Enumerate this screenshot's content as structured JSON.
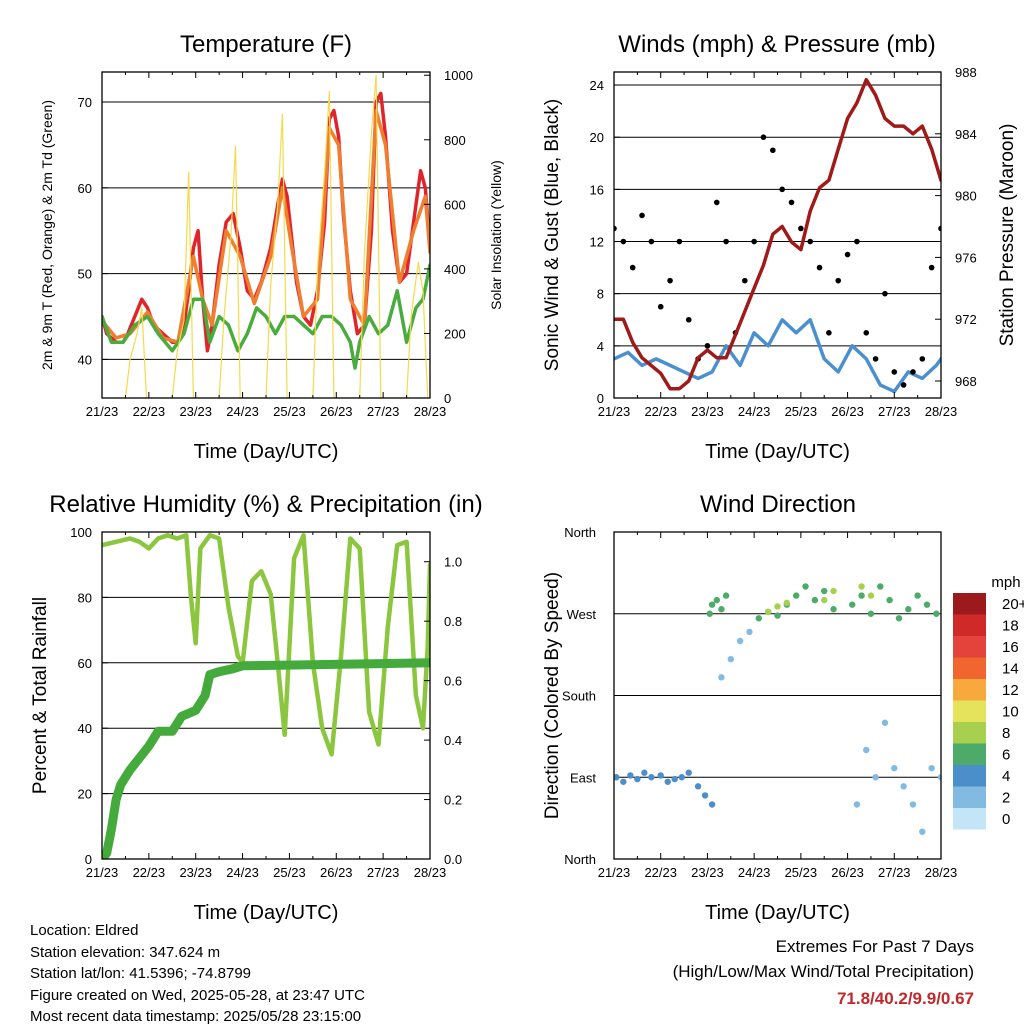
{
  "chart_data": [
    {
      "type": "line",
      "title": "Temperature (F)",
      "xlabel": "Time (Day/UTC)",
      "ylabel": "2m & 9m T (Red, Orange) & 2m Td (Green)",
      "y2label": "Solar Insolation (Yellow)",
      "xticks": [
        "21/23",
        "22/23",
        "23/23",
        "24/23",
        "25/23",
        "26/23",
        "27/23",
        "28/23"
      ],
      "yticks": [
        40,
        50,
        60,
        70
      ],
      "y2ticks": [
        0,
        200,
        400,
        600,
        800,
        1000
      ],
      "ylim": [
        35.5,
        73.5
      ],
      "y2lim": [
        0,
        1010
      ],
      "grid": "horizontal",
      "colors": {
        "t2m": "#e0242b",
        "t9m": "#f07e30",
        "td2m": "#4aab3e",
        "solar": "#f5da4b"
      },
      "series": [
        {
          "name": "2m T",
          "color": "#e0242b",
          "x": [
            0,
            0.1,
            0.3,
            0.45,
            0.55,
            0.7,
            0.85,
            0.97,
            1.1,
            1.3,
            1.5,
            1.62,
            1.75,
            1.85,
            1.95,
            2.05,
            2.15,
            2.25,
            2.35,
            2.5,
            2.65,
            2.8,
            2.95,
            3.1,
            3.25,
            3.4,
            3.6,
            3.75,
            3.85,
            3.95,
            4.05,
            4.15,
            4.3,
            4.45,
            4.6,
            4.75,
            4.85,
            4.95,
            5.05,
            5.15,
            5.3,
            5.45,
            5.6,
            5.75,
            5.85,
            5.95,
            6.05,
            6.2,
            6.35,
            6.5,
            6.65,
            6.8,
            6.9,
            7.0
          ],
          "values": [
            45,
            43,
            42,
            42,
            43,
            45,
            47,
            46,
            44,
            43,
            42,
            42,
            44,
            48,
            53,
            55,
            47,
            41,
            44,
            51,
            56,
            57,
            53,
            48,
            47,
            49,
            53,
            58,
            61,
            59,
            54,
            49,
            45,
            44,
            48,
            56,
            68,
            69,
            66,
            57,
            48,
            43,
            44,
            55,
            70,
            71,
            66,
            55,
            49,
            50,
            56,
            62,
            60,
            53
          ]
        },
        {
          "name": "9m T",
          "color": "#f07e30",
          "x": [
            0,
            0.3,
            0.6,
            0.97,
            1.3,
            1.62,
            1.95,
            2.15,
            2.35,
            2.65,
            2.95,
            3.25,
            3.6,
            3.85,
            4.05,
            4.3,
            4.6,
            4.85,
            5.05,
            5.3,
            5.6,
            5.85,
            6.05,
            6.35,
            6.65,
            6.9,
            7.0
          ],
          "values": [
            44.5,
            42.5,
            43,
            45.5,
            42.5,
            42,
            52,
            47,
            44,
            55,
            52,
            46.5,
            52,
            60,
            53,
            45,
            47,
            67,
            65,
            47,
            44,
            69,
            65,
            49,
            55,
            59,
            52.5
          ]
        },
        {
          "name": "2m Td",
          "color": "#4aab3e",
          "x": [
            0,
            0.2,
            0.45,
            0.7,
            0.97,
            1.2,
            1.5,
            1.75,
            1.95,
            2.15,
            2.3,
            2.5,
            2.7,
            2.9,
            3.1,
            3.3,
            3.5,
            3.7,
            3.9,
            4.1,
            4.3,
            4.5,
            4.7,
            4.9,
            5.1,
            5.3,
            5.4,
            5.5,
            5.7,
            5.9,
            6.1,
            6.3,
            6.5,
            6.7,
            6.85,
            7.0
          ],
          "values": [
            45,
            42,
            42,
            44,
            45,
            43,
            41,
            43,
            47,
            47,
            42,
            45,
            44,
            41,
            43,
            46,
            45,
            43,
            45,
            45,
            44,
            43,
            45,
            45,
            44,
            42,
            39,
            42,
            45,
            43,
            44,
            48,
            42,
            46,
            47,
            51
          ]
        },
        {
          "name": "Solar",
          "color": "#f5da4b",
          "axis": "y2",
          "x": [
            0.5,
            0.6,
            0.75,
            0.85,
            0.95,
            1.5,
            1.6,
            1.75,
            1.85,
            1.95,
            2.5,
            2.6,
            2.75,
            2.85,
            2.95,
            3.5,
            3.6,
            3.75,
            3.85,
            3.95,
            4.5,
            4.6,
            4.75,
            4.85,
            4.95,
            5.5,
            5.6,
            5.75,
            5.85,
            5.95,
            6.5,
            6.6,
            6.75,
            6.85,
            6.95
          ],
          "values": [
            0,
            120,
            200,
            280,
            0,
            0,
            140,
            240,
            700,
            0,
            0,
            240,
            500,
            780,
            0,
            0,
            350,
            600,
            880,
            0,
            0,
            400,
            700,
            950,
            0,
            0,
            450,
            820,
            1000,
            0,
            0,
            260,
            420,
            330,
            0
          ]
        }
      ]
    },
    {
      "type": "line",
      "title": "Winds (mph) & Pressure (mb)",
      "xlabel": "Time (Day/UTC)",
      "ylabel": "Sonic Wind & Gust (Blue, Black)",
      "y2label": "Station Pressure (Maroon)",
      "xticks": [
        "21/23",
        "22/23",
        "23/23",
        "24/23",
        "25/23",
        "26/23",
        "27/23",
        "28/23"
      ],
      "yticks": [
        0,
        4,
        8,
        12,
        16,
        20,
        24
      ],
      "y2ticks": [
        968,
        972,
        976,
        980,
        984,
        988
      ],
      "ylim": [
        0,
        25
      ],
      "y2lim": [
        966.9,
        988
      ],
      "grid": "horizontal",
      "colors": {
        "wind": "#4a90d0",
        "gust": "#000000",
        "pressure": "#a01a1a"
      },
      "series": [
        {
          "name": "Wind",
          "color": "#4a90d0",
          "x": [
            0,
            0.3,
            0.6,
            0.9,
            1.2,
            1.5,
            1.8,
            2.1,
            2.4,
            2.7,
            3.0,
            3.3,
            3.6,
            3.9,
            4.2,
            4.5,
            4.8,
            5.1,
            5.4,
            5.7,
            6.0,
            6.3,
            6.6,
            6.9,
            7.0
          ],
          "values": [
            3,
            3.5,
            2.5,
            3,
            2.5,
            2,
            1.5,
            2,
            4,
            2.5,
            5,
            4,
            6,
            5,
            6,
            3,
            2,
            4,
            3,
            1,
            0.5,
            2,
            1.5,
            2.5,
            3
          ]
        },
        {
          "name": "Gust",
          "color": "#000000",
          "x": [
            0,
            0.2,
            0.4,
            0.6,
            0.8,
            1.0,
            1.2,
            1.4,
            1.6,
            1.8,
            2.0,
            2.2,
            2.4,
            2.6,
            2.8,
            3.0,
            3.2,
            3.4,
            3.6,
            3.8,
            4.0,
            4.2,
            4.4,
            4.6,
            4.8,
            5.0,
            5.2,
            5.4,
            5.6,
            5.8,
            6.0,
            6.2,
            6.4,
            6.6,
            6.8,
            7.0
          ],
          "values": [
            13,
            12,
            10,
            14,
            12,
            7,
            9,
            12,
            6,
            3,
            4,
            15,
            12,
            5,
            9,
            12,
            20,
            19,
            16,
            15,
            13,
            12,
            10,
            5,
            9,
            11,
            12,
            5,
            3,
            8,
            2,
            1,
            2,
            3,
            10,
            13
          ]
        },
        {
          "name": "Pressure",
          "color": "#a01a1a",
          "axis": "y2",
          "x": [
            0,
            0.2,
            0.4,
            0.6,
            0.8,
            1.0,
            1.2,
            1.4,
            1.6,
            1.8,
            2.0,
            2.2,
            2.4,
            2.6,
            2.8,
            3.0,
            3.2,
            3.4,
            3.6,
            3.8,
            4.0,
            4.2,
            4.4,
            4.6,
            4.8,
            5.0,
            5.2,
            5.4,
            5.6,
            5.8,
            6.0,
            6.2,
            6.4,
            6.6,
            6.8,
            7.0
          ],
          "values": [
            972,
            972,
            970.5,
            969.5,
            969,
            968.5,
            967.5,
            967.5,
            968,
            969.5,
            970,
            969.5,
            969.5,
            971,
            972.5,
            974,
            975.5,
            977.5,
            978,
            977,
            976.5,
            979,
            980.5,
            981,
            983,
            985,
            986,
            987.5,
            986.5,
            985,
            984.5,
            984.5,
            984,
            984.5,
            983,
            981
          ]
        }
      ]
    },
    {
      "type": "line",
      "title": "Relative Humidity (%) & Precipitation (in)",
      "xlabel": "Time (Day/UTC)",
      "ylabel": "Percent & Total Rainfall",
      "xticks": [
        "21/23",
        "22/23",
        "23/23",
        "24/23",
        "25/23",
        "26/23",
        "27/23",
        "28/23"
      ],
      "yticks": [
        0,
        20,
        40,
        60,
        80,
        100
      ],
      "y2ticks": [
        0.0,
        0.2,
        0.4,
        0.6,
        0.8,
        1.0
      ],
      "ylim": [
        0,
        100
      ],
      "y2lim": [
        0,
        1.1
      ],
      "grid": "horizontal",
      "colors": {
        "rh": "#8cc63e",
        "precip": "#43aa3b"
      },
      "series": [
        {
          "name": "RH",
          "color": "#8cc63e",
          "x": [
            0,
            0.3,
            0.6,
            0.8,
            1.0,
            1.2,
            1.4,
            1.6,
            1.8,
            1.9,
            2.0,
            2.1,
            2.3,
            2.5,
            2.7,
            2.9,
            3.0,
            3.2,
            3.4,
            3.6,
            3.75,
            3.9,
            4.1,
            4.3,
            4.5,
            4.7,
            4.9,
            5.1,
            5.3,
            5.5,
            5.7,
            5.9,
            6.1,
            6.3,
            6.5,
            6.7,
            6.85,
            6.95,
            7.0
          ],
          "values": [
            96,
            97,
            98,
            97,
            95,
            98,
            99,
            98,
            99,
            80,
            66,
            95,
            99,
            98,
            77,
            62,
            60,
            85,
            88,
            81,
            60,
            38,
            92,
            99,
            60,
            40,
            32,
            62,
            98,
            95,
            45,
            35,
            71,
            96,
            97,
            50,
            40,
            65,
            90
          ]
        },
        {
          "name": "Precipitation",
          "color": "#43aa3b",
          "axis": "y2",
          "x": [
            0,
            0.1,
            0.2,
            0.3,
            0.4,
            0.6,
            0.8,
            1.0,
            1.2,
            1.5,
            1.7,
            2.0,
            2.2,
            2.3,
            2.5,
            2.8,
            3.0,
            7.0
          ],
          "values": [
            0,
            0.02,
            0.1,
            0.2,
            0.25,
            0.3,
            0.34,
            0.38,
            0.43,
            0.43,
            0.48,
            0.5,
            0.55,
            0.62,
            0.63,
            0.64,
            0.65,
            0.66
          ]
        }
      ]
    },
    {
      "type": "scatter",
      "title": "Wind Direction",
      "xlabel": "Time (Day/UTC)",
      "ylabel": "Direction (Colored By Speed)",
      "xticks": [
        "21/23",
        "22/23",
        "23/23",
        "24/23",
        "25/23",
        "26/23",
        "27/23",
        "28/23"
      ],
      "yticks": [
        "North",
        "East",
        "South",
        "West",
        "North"
      ],
      "ylim": [
        0,
        360
      ],
      "grid": "horizontal",
      "colorbar": {
        "unit": "mph",
        "labels": [
          "20+",
          "18",
          "16",
          "14",
          "12",
          "10",
          "8",
          "6",
          "4",
          "2",
          "0"
        ],
        "colors": [
          "#9c1a1c",
          "#cf2a28",
          "#e3433a",
          "#f0662e",
          "#f7a93e",
          "#e5e35b",
          "#a8cf4e",
          "#4daa68",
          "#4a8fca",
          "#82bae2",
          "#c2e5f7"
        ]
      },
      "points": [
        {
          "x": [
            0.05,
            0.2,
            0.35,
            0.5,
            0.65,
            0.8,
            1.0,
            1.15,
            1.3,
            1.45,
            1.6,
            1.8,
            1.95,
            2.1
          ],
          "y": [
            90,
            85,
            92,
            88,
            95,
            90,
            92,
            85,
            88,
            90,
            95,
            80,
            70,
            60
          ],
          "speed": 4
        },
        {
          "x": [
            2.05,
            2.1,
            2.2,
            2.3,
            2.4,
            3.1,
            3.3,
            3.5,
            3.7,
            3.9,
            4.1,
            4.3,
            4.5,
            4.7,
            5.1,
            5.3,
            5.5,
            5.7,
            5.9,
            6.1,
            6.3,
            6.5,
            6.7,
            6.9
          ],
          "y": [
            270,
            280,
            285,
            275,
            290,
            265,
            272,
            268,
            280,
            290,
            300,
            285,
            295,
            275,
            280,
            290,
            270,
            300,
            285,
            265,
            275,
            290,
            280,
            270
          ],
          "speed": 5
        },
        {
          "x": [
            3.3,
            3.5,
            3.7,
            4.5,
            4.7,
            5.3,
            5.5
          ],
          "y": [
            272,
            278,
            282,
            285,
            295,
            300,
            290
          ],
          "speed": 8
        },
        {
          "x": [
            2.3,
            2.5,
            2.7,
            2.9,
            5.2,
            5.4,
            5.6,
            5.8,
            6.0,
            6.2,
            6.4,
            6.6,
            6.8,
            7.0
          ],
          "y": [
            200,
            220,
            240,
            250,
            60,
            120,
            90,
            150,
            100,
            80,
            60,
            30,
            100,
            90
          ],
          "speed": 1
        }
      ]
    }
  ],
  "info": {
    "location": "Location: Eldred",
    "elevation": "Station elevation: 347.624 m",
    "latlon": "Station lat/lon: 41.5396; -74.8799",
    "created": "Figure created on Wed, 2025-05-28, at 23:47 UTC",
    "recent": "Most recent data timestamp: 2025/05/28 23:15:00"
  },
  "extremes": {
    "heading": "Extremes For Past 7 Days",
    "subheading": "(High/Low/Max Wind/Total Precipitation)",
    "values": "71.8/40.2/9.9/0.67"
  }
}
